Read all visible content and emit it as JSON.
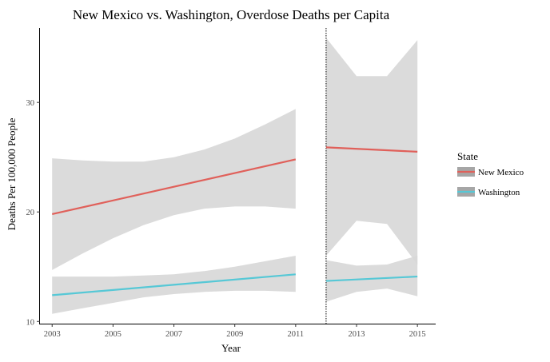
{
  "chart_data": {
    "type": "line",
    "title": "New Mexico vs. Washington, Overdose Deaths per Capita",
    "xlabel": "Year",
    "ylabel": "Deaths Per 100,000 People",
    "xlim": [
      2002.6,
      2015.6
    ],
    "ylim": [
      9.8,
      36.8
    ],
    "x_ticks": [
      2003,
      2005,
      2007,
      2009,
      2011,
      2013,
      2015
    ],
    "x_tick_labels": [
      "2003",
      "2005",
      "2007",
      "2009",
      "2011",
      "2013",
      "2015"
    ],
    "y_ticks": [
      10,
      20,
      30
    ],
    "y_tick_labels": [
      "10",
      "20",
      "30"
    ],
    "cutoff_x": 2012,
    "grid": false,
    "legend": {
      "title": "State",
      "position": "right"
    },
    "series": [
      {
        "name": "New Mexico",
        "color": "#e0605a",
        "segments": [
          {
            "x": [
              2003,
              2011
            ],
            "y": [
              19.8,
              24.8
            ],
            "ci_x": [
              2003,
              2004,
              2005,
              2006,
              2007,
              2008,
              2009,
              2010,
              2011
            ],
            "ci_lower": [
              14.7,
              16.2,
              17.6,
              18.8,
              19.7,
              20.3,
              20.5,
              20.5,
              20.3
            ],
            "ci_upper": [
              24.9,
              24.7,
              24.6,
              24.6,
              25.0,
              25.7,
              26.7,
              28.0,
              29.4
            ]
          },
          {
            "x": [
              2012,
              2015
            ],
            "y": [
              25.9,
              25.5
            ],
            "ci_x": [
              2012,
              2013,
              2014,
              2015
            ],
            "ci_lower": [
              16.0,
              19.2,
              18.9,
              15.2
            ],
            "ci_upper": [
              35.9,
              32.4,
              32.4,
              35.7
            ]
          }
        ]
      },
      {
        "name": "Washington",
        "color": "#56c8d6",
        "segments": [
          {
            "x": [
              2003,
              2011
            ],
            "y": [
              12.4,
              14.3
            ],
            "ci_x": [
              2003,
              2004,
              2005,
              2006,
              2007,
              2008,
              2009,
              2010,
              2011
            ],
            "ci_lower": [
              10.7,
              11.2,
              11.7,
              12.2,
              12.5,
              12.7,
              12.8,
              12.8,
              12.7
            ],
            "ci_upper": [
              14.1,
              14.1,
              14.1,
              14.2,
              14.3,
              14.6,
              15.0,
              15.5,
              16.0
            ]
          },
          {
            "x": [
              2012,
              2015
            ],
            "y": [
              13.7,
              14.1
            ],
            "ci_x": [
              2012,
              2013,
              2014,
              2015
            ],
            "ci_lower": [
              11.8,
              12.7,
              13.0,
              12.3
            ],
            "ci_upper": [
              15.6,
              15.1,
              15.2,
              16.0
            ]
          }
        ]
      }
    ],
    "ci_color": "#d7d7d7"
  }
}
